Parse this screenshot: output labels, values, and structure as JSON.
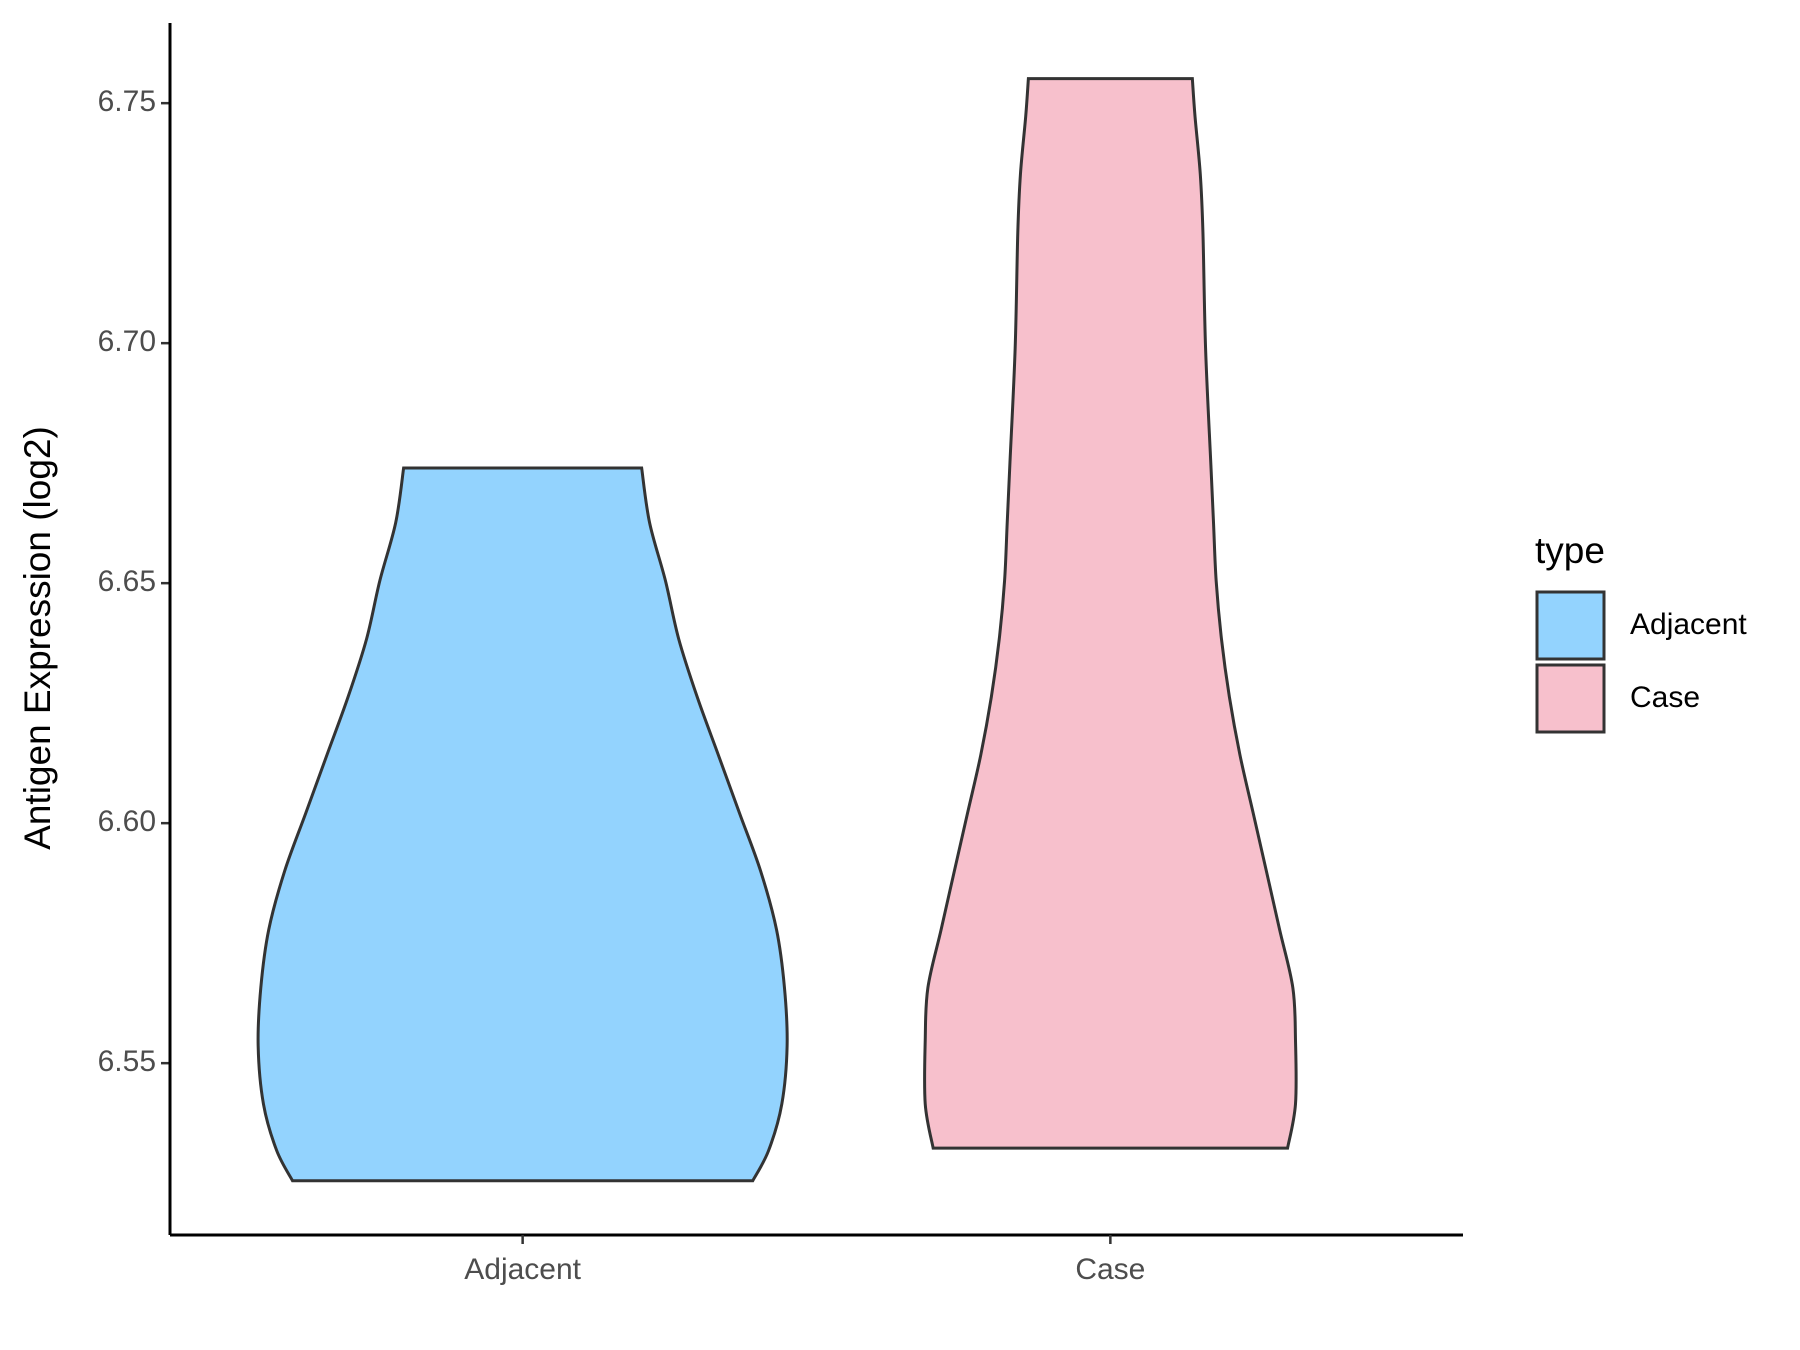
{
  "chart_data": {
    "type": "violin",
    "y_label": "Antigen Expression (log2)",
    "categories": [
      "Adjacent",
      "Case"
    ],
    "legend_title": "type",
    "legend_position": "right",
    "ylim": [
      6.5142,
      6.7667
    ],
    "yticks": [
      6.55,
      {
        "value": 6.6,
        "label": "6.60"
      },
      6.65,
      {
        "value": 6.7,
        "label": "6.70"
      },
      6.75
    ],
    "series": [
      {
        "name": "Adjacent",
        "color": "#93d3fe",
        "y": [
          6.5255,
          6.5318,
          6.5415,
          6.5536,
          6.5657,
          6.5778,
          6.59,
          6.6021,
          6.6142,
          6.6263,
          6.6384,
          6.6505,
          6.6626,
          6.674
        ],
        "widths": [
          0.87,
          0.93,
          0.98,
          1,
          0.99,
          0.96,
          0.9,
          0.82,
          0.74,
          0.66,
          0.59,
          0.54,
          0.48,
          0.45
        ]
      },
      {
        "name": "Case",
        "color": "#f7c0cc",
        "y": [
          6.5323,
          6.5415,
          6.5548,
          6.5657,
          6.5778,
          6.59,
          6.6021,
          6.6142,
          6.6263,
          6.6384,
          6.6505,
          6.6626,
          6.6747,
          6.6989,
          6.7231,
          6.7352,
          6.7473,
          6.7551
        ],
        "widths": [
          0.67,
          0.7,
          0.7,
          0.69,
          0.64,
          0.59,
          0.54,
          0.49,
          0.45,
          0.42,
          0.4,
          0.39,
          0.38,
          0.36,
          0.35,
          0.34,
          0.32,
          0.31
        ]
      }
    ]
  }
}
